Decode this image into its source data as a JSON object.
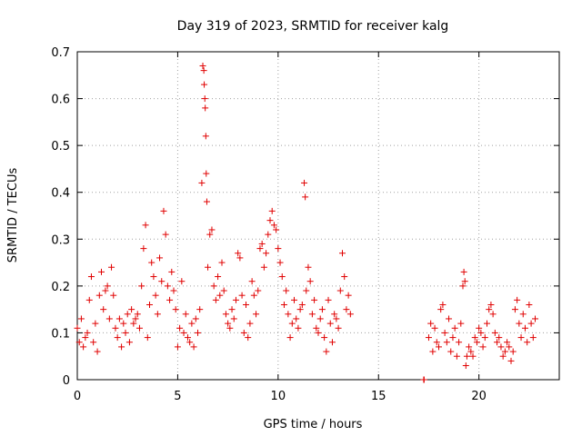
{
  "chart_data": {
    "type": "scatter",
    "title": "Day 319 of 2023, SRMTID for receiver kalg",
    "xlabel": "GPS time / hours",
    "ylabel": "SRMTID / TECUs",
    "xlim": [
      0,
      24
    ],
    "ylim": [
      0,
      0.7
    ],
    "xticks": [
      0,
      5,
      10,
      15,
      20
    ],
    "yticks": [
      0,
      0.1,
      0.2,
      0.3,
      0.4,
      0.5,
      0.6,
      0.7
    ],
    "grid": true,
    "marker": "+",
    "color": "#e00000",
    "series": [
      {
        "name": "SRMTID",
        "points": [
          [
            0.0,
            0.11
          ],
          [
            0.1,
            0.08
          ],
          [
            0.2,
            0.13
          ],
          [
            0.3,
            0.07
          ],
          [
            0.4,
            0.09
          ],
          [
            0.5,
            0.1
          ],
          [
            0.6,
            0.17
          ],
          [
            0.7,
            0.22
          ],
          [
            0.8,
            0.08
          ],
          [
            0.9,
            0.12
          ],
          [
            1.0,
            0.06
          ],
          [
            1.1,
            0.18
          ],
          [
            1.2,
            0.23
          ],
          [
            1.3,
            0.15
          ],
          [
            1.4,
            0.19
          ],
          [
            1.5,
            0.2
          ],
          [
            1.6,
            0.13
          ],
          [
            1.7,
            0.24
          ],
          [
            1.8,
            0.18
          ],
          [
            1.9,
            0.11
          ],
          [
            2.0,
            0.09
          ],
          [
            2.1,
            0.13
          ],
          [
            2.2,
            0.07
          ],
          [
            2.3,
            0.12
          ],
          [
            2.4,
            0.1
          ],
          [
            2.5,
            0.14
          ],
          [
            2.6,
            0.08
          ],
          [
            2.7,
            0.15
          ],
          [
            2.8,
            0.12
          ],
          [
            2.9,
            0.13
          ],
          [
            3.0,
            0.14
          ],
          [
            3.1,
            0.11
          ],
          [
            3.2,
            0.2
          ],
          [
            3.3,
            0.28
          ],
          [
            3.4,
            0.33
          ],
          [
            3.5,
            0.09
          ],
          [
            3.6,
            0.16
          ],
          [
            3.7,
            0.25
          ],
          [
            3.8,
            0.22
          ],
          [
            3.9,
            0.18
          ],
          [
            4.0,
            0.14
          ],
          [
            4.1,
            0.26
          ],
          [
            4.2,
            0.21
          ],
          [
            4.3,
            0.36
          ],
          [
            4.4,
            0.31
          ],
          [
            4.5,
            0.2
          ],
          [
            4.6,
            0.17
          ],
          [
            4.7,
            0.23
          ],
          [
            4.8,
            0.19
          ],
          [
            4.9,
            0.15
          ],
          [
            5.0,
            0.07
          ],
          [
            5.1,
            0.11
          ],
          [
            5.2,
            0.21
          ],
          [
            5.3,
            0.1
          ],
          [
            5.4,
            0.14
          ],
          [
            5.5,
            0.09
          ],
          [
            5.6,
            0.08
          ],
          [
            5.7,
            0.12
          ],
          [
            5.8,
            0.07
          ],
          [
            5.9,
            0.13
          ],
          [
            6.0,
            0.1
          ],
          [
            6.1,
            0.15
          ],
          [
            6.2,
            0.42
          ],
          [
            6.25,
            0.67
          ],
          [
            6.3,
            0.66
          ],
          [
            6.32,
            0.63
          ],
          [
            6.35,
            0.6
          ],
          [
            6.37,
            0.58
          ],
          [
            6.4,
            0.52
          ],
          [
            6.42,
            0.44
          ],
          [
            6.45,
            0.38
          ],
          [
            6.5,
            0.24
          ],
          [
            6.6,
            0.31
          ],
          [
            6.7,
            0.32
          ],
          [
            6.8,
            0.2
          ],
          [
            6.9,
            0.17
          ],
          [
            7.0,
            0.22
          ],
          [
            7.1,
            0.18
          ],
          [
            7.2,
            0.25
          ],
          [
            7.3,
            0.19
          ],
          [
            7.4,
            0.14
          ],
          [
            7.5,
            0.12
          ],
          [
            7.6,
            0.11
          ],
          [
            7.7,
            0.15
          ],
          [
            7.8,
            0.13
          ],
          [
            7.9,
            0.17
          ],
          [
            8.0,
            0.27
          ],
          [
            8.1,
            0.26
          ],
          [
            8.2,
            0.18
          ],
          [
            8.3,
            0.1
          ],
          [
            8.4,
            0.16
          ],
          [
            8.5,
            0.09
          ],
          [
            8.6,
            0.12
          ],
          [
            8.7,
            0.21
          ],
          [
            8.8,
            0.18
          ],
          [
            8.9,
            0.14
          ],
          [
            9.0,
            0.19
          ],
          [
            9.1,
            0.28
          ],
          [
            9.2,
            0.29
          ],
          [
            9.3,
            0.24
          ],
          [
            9.4,
            0.27
          ],
          [
            9.5,
            0.31
          ],
          [
            9.6,
            0.34
          ],
          [
            9.7,
            0.36
          ],
          [
            9.8,
            0.33
          ],
          [
            9.9,
            0.32
          ],
          [
            10.0,
            0.28
          ],
          [
            10.1,
            0.25
          ],
          [
            10.2,
            0.22
          ],
          [
            10.3,
            0.16
          ],
          [
            10.4,
            0.19
          ],
          [
            10.5,
            0.14
          ],
          [
            10.6,
            0.09
          ],
          [
            10.7,
            0.12
          ],
          [
            10.8,
            0.17
          ],
          [
            10.9,
            0.13
          ],
          [
            11.0,
            0.11
          ],
          [
            11.1,
            0.15
          ],
          [
            11.2,
            0.16
          ],
          [
            11.3,
            0.42
          ],
          [
            11.35,
            0.39
          ],
          [
            11.4,
            0.19
          ],
          [
            11.5,
            0.24
          ],
          [
            11.6,
            0.21
          ],
          [
            11.7,
            0.14
          ],
          [
            11.8,
            0.17
          ],
          [
            11.9,
            0.11
          ],
          [
            12.0,
            0.1
          ],
          [
            12.1,
            0.13
          ],
          [
            12.2,
            0.15
          ],
          [
            12.3,
            0.09
          ],
          [
            12.4,
            0.06
          ],
          [
            12.5,
            0.17
          ],
          [
            12.6,
            0.12
          ],
          [
            12.7,
            0.08
          ],
          [
            12.8,
            0.14
          ],
          [
            12.9,
            0.13
          ],
          [
            13.0,
            0.11
          ],
          [
            13.1,
            0.19
          ],
          [
            13.2,
            0.27
          ],
          [
            13.3,
            0.22
          ],
          [
            13.4,
            0.15
          ],
          [
            13.5,
            0.18
          ],
          [
            13.6,
            0.14
          ],
          [
            17.25,
            0.0
          ],
          [
            17.27,
            0.0
          ],
          [
            17.5,
            0.09
          ],
          [
            17.6,
            0.12
          ],
          [
            17.7,
            0.06
          ],
          [
            17.8,
            0.11
          ],
          [
            17.9,
            0.08
          ],
          [
            18.0,
            0.07
          ],
          [
            18.1,
            0.15
          ],
          [
            18.2,
            0.16
          ],
          [
            18.3,
            0.1
          ],
          [
            18.4,
            0.08
          ],
          [
            18.5,
            0.13
          ],
          [
            18.6,
            0.06
          ],
          [
            18.7,
            0.09
          ],
          [
            18.8,
            0.11
          ],
          [
            18.9,
            0.05
          ],
          [
            19.0,
            0.08
          ],
          [
            19.1,
            0.12
          ],
          [
            19.2,
            0.2
          ],
          [
            19.25,
            0.23
          ],
          [
            19.3,
            0.21
          ],
          [
            19.35,
            0.03
          ],
          [
            19.4,
            0.05
          ],
          [
            19.5,
            0.07
          ],
          [
            19.6,
            0.06
          ],
          [
            19.7,
            0.05
          ],
          [
            19.8,
            0.09
          ],
          [
            19.9,
            0.08
          ],
          [
            20.0,
            0.11
          ],
          [
            20.1,
            0.1
          ],
          [
            20.2,
            0.07
          ],
          [
            20.3,
            0.09
          ],
          [
            20.4,
            0.12
          ],
          [
            20.5,
            0.15
          ],
          [
            20.6,
            0.16
          ],
          [
            20.7,
            0.14
          ],
          [
            20.8,
            0.1
          ],
          [
            20.9,
            0.08
          ],
          [
            21.0,
            0.09
          ],
          [
            21.1,
            0.07
          ],
          [
            21.2,
            0.05
          ],
          [
            21.3,
            0.06
          ],
          [
            21.4,
            0.08
          ],
          [
            21.5,
            0.07
          ],
          [
            21.6,
            0.04
          ],
          [
            21.7,
            0.06
          ],
          [
            21.8,
            0.15
          ],
          [
            21.9,
            0.17
          ],
          [
            22.0,
            0.12
          ],
          [
            22.1,
            0.09
          ],
          [
            22.2,
            0.14
          ],
          [
            22.3,
            0.11
          ],
          [
            22.4,
            0.08
          ],
          [
            22.5,
            0.16
          ],
          [
            22.6,
            0.12
          ],
          [
            22.7,
            0.09
          ],
          [
            22.8,
            0.13
          ]
        ]
      }
    ]
  }
}
